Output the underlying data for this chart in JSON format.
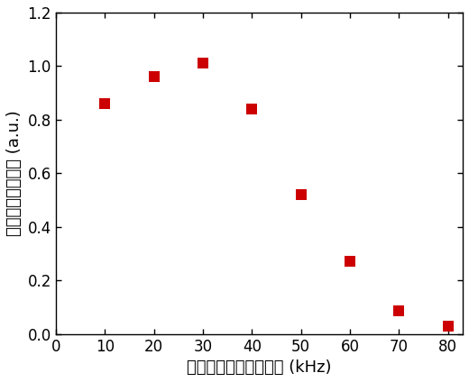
{
  "x": [
    10,
    20,
    30,
    40,
    50,
    60,
    70,
    80
  ],
  "y": [
    0.86,
    0.96,
    1.01,
    0.84,
    0.52,
    0.27,
    0.085,
    0.03
  ],
  "marker_color": "#cc0000",
  "marker": "s",
  "marker_size": 8,
  "xlim": [
    0,
    83
  ],
  "ylim": [
    0,
    1.2
  ],
  "xticks": [
    0,
    10,
    20,
    30,
    40,
    50,
    60,
    70,
    80
  ],
  "yticks": [
    0.0,
    0.2,
    0.4,
    0.6,
    0.8,
    1.0,
    1.2
  ],
  "xlabel": "パルス繰り返し周波数 (kHz)",
  "ylabel": "テラヘルツ波出力 (a.u.)",
  "background_color": "#ffffff"
}
